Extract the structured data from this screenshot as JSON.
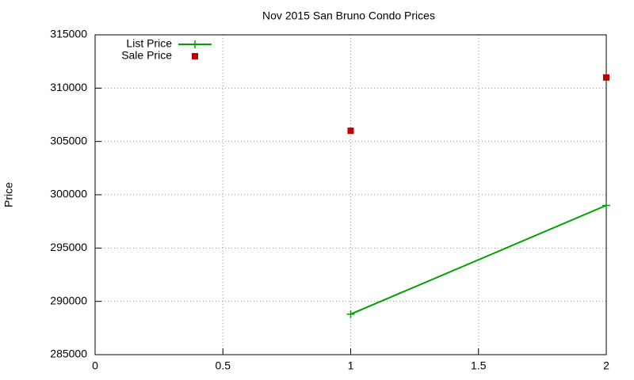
{
  "chart_data": {
    "type": "line",
    "title": "Nov 2015 San Bruno Condo Prices",
    "ylabel": "Price",
    "x": [
      1,
      2
    ],
    "series": [
      {
        "name": "List Price",
        "color": "#00a000",
        "mode": "lines+points",
        "values": [
          288800,
          299000
        ]
      },
      {
        "name": "Sale Price",
        "color": "#c00000",
        "mode": "points",
        "values": [
          306000,
          311000
        ]
      }
    ],
    "xlim": [
      0,
      2
    ],
    "xticks": [
      0,
      0.5,
      1,
      1.5,
      2
    ],
    "ylim": [
      285000,
      315000
    ],
    "yticks": [
      285000,
      290000,
      295000,
      300000,
      305000,
      310000,
      315000
    ],
    "grid": true,
    "legend": "top-left"
  }
}
